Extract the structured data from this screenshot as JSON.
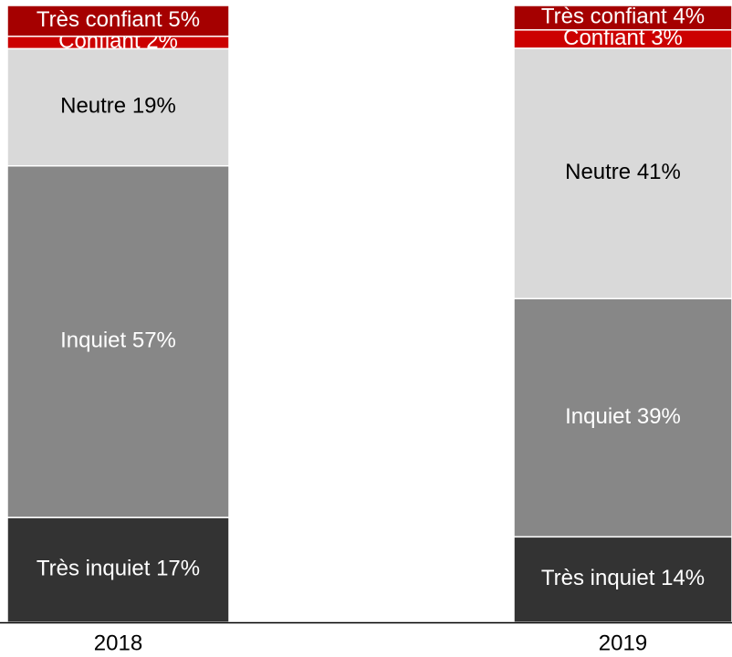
{
  "chart_data": {
    "type": "stacked_bar",
    "categories": [
      "2018",
      "2019"
    ],
    "series": [
      {
        "name": "Très inquiet",
        "color": "#333333",
        "text_color": "#ffffff",
        "values": [
          17,
          14
        ],
        "value_labels": [
          "17%",
          "14%"
        ]
      },
      {
        "name": "Inquiet",
        "color": "#878787",
        "text_color": "#ffffff",
        "values": [
          57,
          39
        ],
        "value_labels": [
          "57%",
          "39%"
        ]
      },
      {
        "name": "Neutre",
        "color": "#d9d9d9",
        "text_color": "#000000",
        "values": [
          19,
          41
        ],
        "value_labels": [
          "19%",
          "41%"
        ]
      },
      {
        "name": "Confiant",
        "color": "#cc0000",
        "text_color": "#ffffff",
        "values": [
          2,
          3
        ],
        "value_labels": [
          "2%",
          "3%"
        ]
      },
      {
        "name": "Très confiant",
        "color": "#a50000",
        "text_color": "#ffffff",
        "values": [
          5,
          4
        ],
        "value_labels": [
          "5%",
          "4%"
        ]
      }
    ]
  }
}
